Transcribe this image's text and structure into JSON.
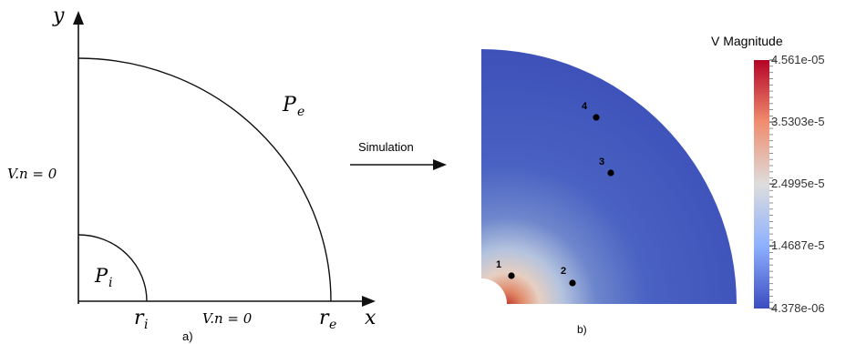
{
  "panel_a": {
    "axis_y_label": "y",
    "axis_x_label": "x",
    "left_boundary_label": "V.n = 0",
    "bottom_boundary_label": "V.n = 0",
    "inner_pressure_label": "P",
    "inner_pressure_sub": "i",
    "outer_pressure_label": "P",
    "outer_pressure_sub": "e",
    "inner_radius_label": "r",
    "inner_radius_sub": "i",
    "outer_radius_label": "r",
    "outer_radius_sub": "e",
    "caption": "a)"
  },
  "arrow": {
    "label": "Simulation"
  },
  "panel_b": {
    "caption": "b)",
    "points": [
      "1",
      "2",
      "3",
      "4"
    ],
    "colorbar": {
      "title": "V Magnitude",
      "tick_labels": [
        "4.561e-05",
        "3.5303e-5",
        "2.4995e-5",
        "1.4687e-5",
        "4.378e-06"
      ],
      "max_color": "#c0292d",
      "mid_color": "#dcdcdc",
      "min_color": "#3a4cc0"
    }
  }
}
